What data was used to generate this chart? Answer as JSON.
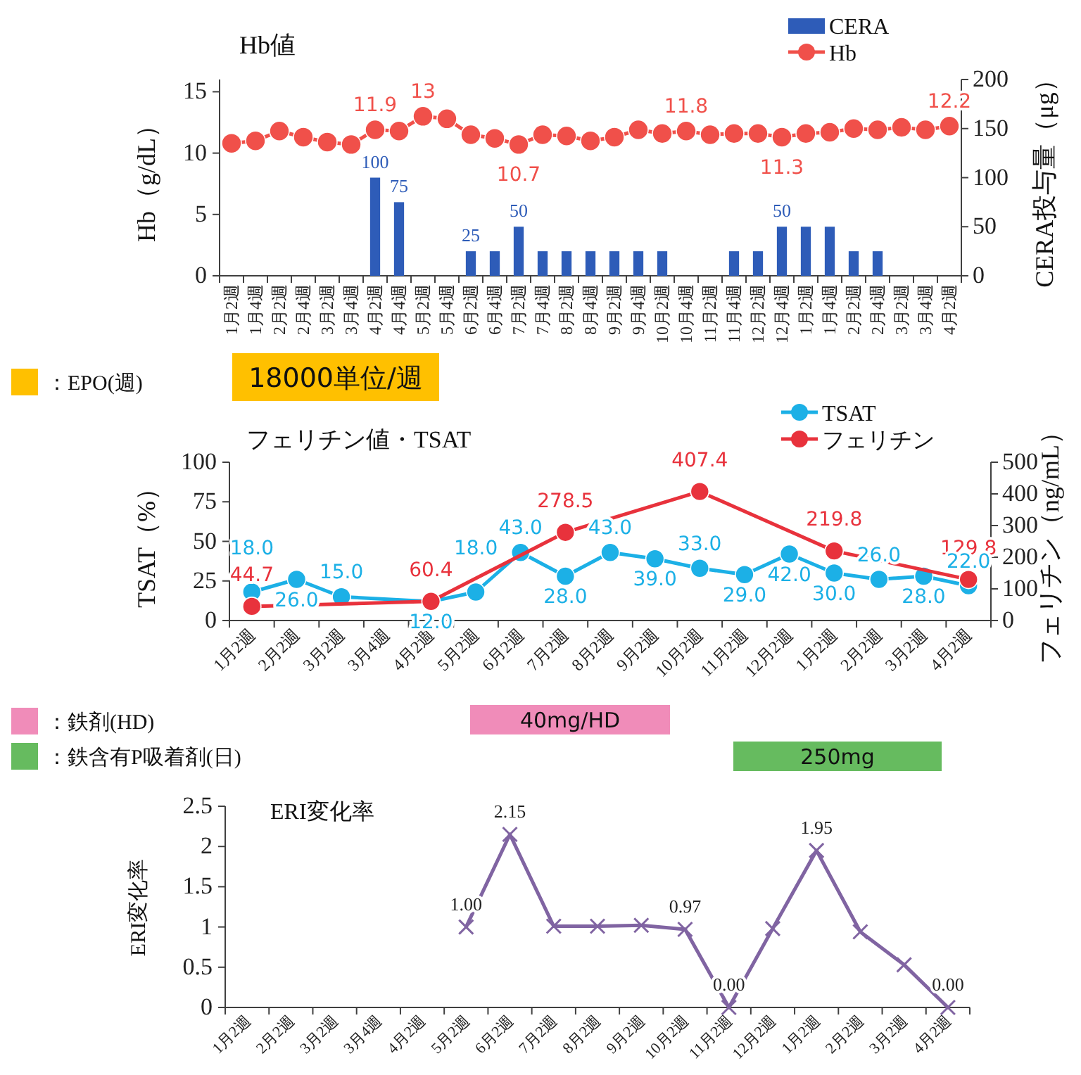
{
  "chart_data": [
    {
      "type": "bar",
      "title": "Hb値",
      "ylabel": "Hb（g/dL）",
      "y2label": "CERA投与量（μg）",
      "legend": "top right",
      "categories": [
        "1月2週",
        "1月4週",
        "2月2週",
        "2月4週",
        "3月2週",
        "3月4週",
        "4月2週",
        "4月4週",
        "5月2週",
        "5月4週",
        "6月2週",
        "6月4週",
        "7月2週",
        "7月4週",
        "8月2週",
        "8月4週",
        "9月2週",
        "9月4週",
        "10月2週",
        "10月4週",
        "11月2週",
        "11月4週",
        "12月2週",
        "12月4週",
        "1月2週",
        "1月4週",
        "2月2週",
        "2月4週",
        "3月2週",
        "3月4週",
        "4月2週"
      ],
      "series": [
        {
          "name": "CERA",
          "axis": "y2",
          "color": "#2e5cb8",
          "values": [
            null,
            null,
            null,
            null,
            null,
            null,
            100,
            75,
            null,
            null,
            25,
            25,
            50,
            25,
            25,
            25,
            25,
            25,
            25,
            null,
            null,
            25,
            25,
            50,
            50,
            50,
            25,
            25,
            null,
            null,
            null
          ],
          "value_labels": [
            null,
            null,
            null,
            null,
            null,
            null,
            "100",
            "75",
            null,
            null,
            "25",
            null,
            "50",
            null,
            null,
            null,
            null,
            null,
            null,
            null,
            null,
            null,
            null,
            "50",
            null,
            null,
            null,
            null,
            null,
            null,
            null
          ]
        },
        {
          "name": "Hb",
          "type": "line",
          "marker": "circle",
          "color": "#f0504a",
          "values": [
            10.8,
            11.0,
            11.8,
            11.3,
            10.9,
            10.7,
            11.9,
            11.8,
            13,
            12.8,
            11.5,
            11.2,
            10.7,
            11.5,
            11.4,
            11.0,
            11.3,
            11.9,
            11.6,
            11.8,
            11.5,
            11.6,
            11.6,
            11.3,
            11.6,
            11.7,
            12.0,
            11.9,
            12.1,
            11.9,
            12.2
          ],
          "value_labels": [
            null,
            null,
            null,
            null,
            null,
            null,
            "11.9",
            null,
            "13",
            null,
            null,
            null,
            "10.7",
            null,
            null,
            null,
            null,
            null,
            null,
            "11.8",
            null,
            null,
            null,
            "11.3",
            null,
            null,
            null,
            null,
            null,
            null,
            "12.2"
          ]
        }
      ],
      "ylim": [
        0,
        16
      ],
      "yticks": [
        0,
        5,
        10,
        15
      ],
      "y2lim": [
        0,
        200
      ],
      "y2ticks": [
        0,
        50,
        100,
        150,
        200
      ]
    },
    {
      "type": "other",
      "annotations": [
        "：EPO(週)",
        "18000単位/週"
      ],
      "colors": [
        "#ffc000"
      ]
    },
    {
      "type": "line",
      "title": "フェリチン値・TSAT",
      "ylabel": "TSAT（%）",
      "y2label": "フェリチン（ng/mL）",
      "legend": "top right",
      "marker": "circle",
      "categories": [
        "1月2週",
        "2月2週",
        "3月2週",
        "3月4週",
        "4月2週",
        "5月2週",
        "6月2週",
        "7月2週",
        "8月2週",
        "9月2週",
        "10月2週",
        "11月2週",
        "12月2週",
        "1月2週",
        "2月2週",
        "3月2週",
        "4月2週"
      ],
      "series": [
        {
          "name": "TSAT",
          "color": "#1cb0e6",
          "values": [
            18.0,
            26.0,
            15.0,
            null,
            12.0,
            18.0,
            43.0,
            28.0,
            43.0,
            39.0,
            33.0,
            29.0,
            42.0,
            30.0,
            26.0,
            28.0,
            22.0
          ],
          "value_labels": [
            "18.0",
            "26.0",
            "15.0",
            null,
            "12.0",
            "18.0",
            "43.0",
            "28.0",
            "43.0",
            "39.0",
            "33.0",
            "29.0",
            "42.0",
            "30.0",
            "26.0",
            "28.0",
            "22.0"
          ]
        },
        {
          "name": "フェリチン",
          "axis": "y2",
          "color": "#e8323c",
          "values": [
            44.7,
            null,
            null,
            null,
            60.4,
            null,
            null,
            278.5,
            null,
            null,
            407.4,
            null,
            null,
            219.8,
            null,
            null,
            129.8
          ],
          "value_labels": [
            "44.7",
            null,
            null,
            null,
            "60.4",
            null,
            null,
            "278.5",
            null,
            null,
            "407.4",
            null,
            null,
            "219.8",
            null,
            null,
            "129.8"
          ]
        }
      ],
      "ylim": [
        0,
        100
      ],
      "yticks": [
        0,
        25,
        50,
        75,
        100
      ],
      "y2lim": [
        0,
        500
      ],
      "y2ticks": [
        0,
        100,
        200,
        300,
        400,
        500
      ]
    },
    {
      "type": "other",
      "annotations": [
        "：鉄剤(HD)",
        "40mg/HD",
        "：鉄含有P吸着剤(日)",
        "250mg"
      ],
      "colors": [
        "#f08cb9",
        "#66bb5f"
      ]
    },
    {
      "type": "line",
      "title": "ERI変化率",
      "ylabel": "ERI変化率",
      "marker": "cross",
      "categories": [
        "1月2週",
        "2月2週",
        "3月2週",
        "3月4週",
        "4月2週",
        "5月2週",
        "6月2週",
        "7月2週",
        "8月2週",
        "9月2週",
        "10月2週",
        "11月2週",
        "12月2週",
        "1月2週",
        "2月2週",
        "3月2週",
        "4月2週"
      ],
      "series": [
        {
          "color": "#8064a2",
          "values": [
            null,
            null,
            null,
            null,
            null,
            1.0,
            2.15,
            1.01,
            1.01,
            1.02,
            0.97,
            0.0,
            0.98,
            1.95,
            0.94,
            0.53,
            0.0
          ],
          "value_labels": [
            null,
            null,
            null,
            null,
            null,
            "1.00",
            "2.15",
            null,
            null,
            null,
            "0.97",
            "0.00",
            null,
            "1.95",
            null,
            null,
            "0.00"
          ]
        }
      ],
      "ylim": [
        0,
        2.5
      ],
      "yticks": [
        0,
        0.5,
        1,
        1.5,
        2,
        2.5
      ]
    }
  ]
}
